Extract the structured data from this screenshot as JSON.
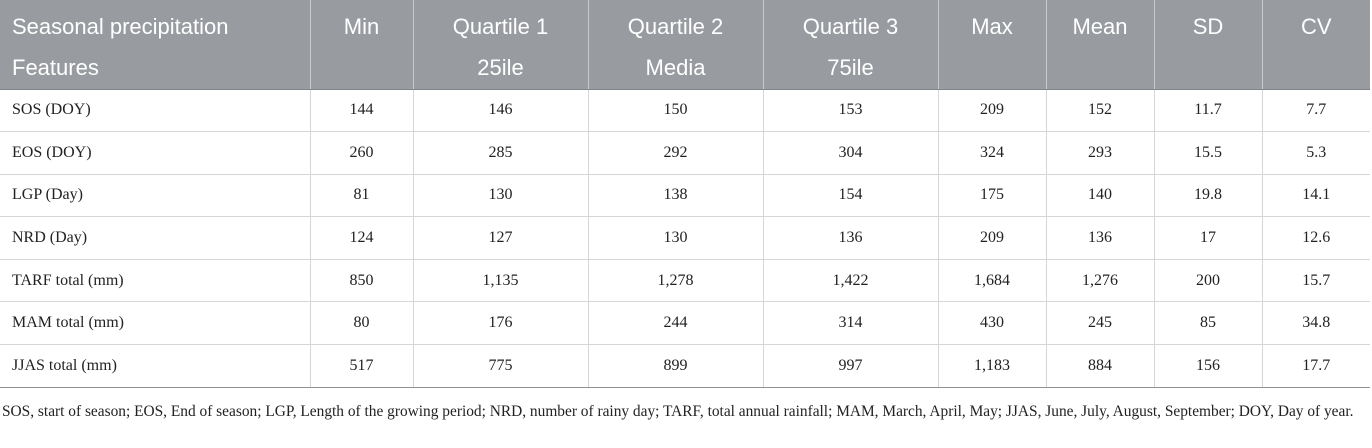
{
  "table": {
    "headers": [
      [
        "Seasonal precipitation",
        "Features"
      ],
      [
        "Min"
      ],
      [
        "Quartile 1",
        "25ile"
      ],
      [
        "Quartile 2",
        "Media"
      ],
      [
        "Quartile 3",
        "75ile"
      ],
      [
        "Max"
      ],
      [
        "Mean"
      ],
      [
        "SD"
      ],
      [
        "CV"
      ]
    ],
    "rows": [
      [
        "SOS (DOY)",
        "144",
        "146",
        "150",
        "153",
        "209",
        "152",
        "11.7",
        "7.7"
      ],
      [
        "EOS (DOY)",
        "260",
        "285",
        "292",
        "304",
        "324",
        "293",
        "15.5",
        "5.3"
      ],
      [
        "LGP (Day)",
        "81",
        "130",
        "138",
        "154",
        "175",
        "140",
        "19.8",
        "14.1"
      ],
      [
        "NRD (Day)",
        "124",
        "127",
        "130",
        "136",
        "209",
        "136",
        "17",
        "12.6"
      ],
      [
        "TARF total (mm)",
        "850",
        "1,135",
        "1,278",
        "1,422",
        "1,684",
        "1,276",
        "200",
        "15.7"
      ],
      [
        "MAM total (mm)",
        "80",
        "176",
        "244",
        "314",
        "430",
        "245",
        "85",
        "34.8"
      ],
      [
        "JJAS total (mm)",
        "517",
        "775",
        "899",
        "997",
        "1,183",
        "884",
        "156",
        "17.7"
      ]
    ]
  },
  "footnote": "SOS, start of season; EOS, End of season; LGP, Length of the growing period; NRD, number of rainy day; TARF, total annual rainfall; MAM, March, April, May; JJAS, June, July, August, September; DOY, Day of year.",
  "colors": {
    "header_bg": "#989ca1",
    "header_text": "#ffffff",
    "grid_line": "#d4d6d9",
    "body_text": "#222222"
  }
}
